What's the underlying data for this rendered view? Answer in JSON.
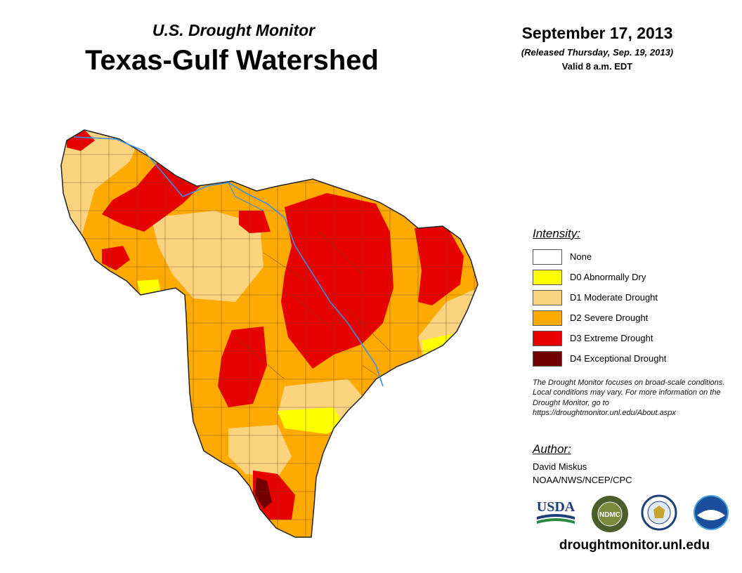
{
  "header": {
    "subtitle": "U.S. Drought Monitor",
    "title": "Texas-Gulf Watershed",
    "date": "September 17, 2013",
    "released": "(Released Thursday, Sep. 19, 2013)",
    "valid": "Valid 8 a.m. EDT"
  },
  "legend": {
    "heading": "Intensity:",
    "items": [
      {
        "label": "None",
        "color": "#ffffff"
      },
      {
        "label": "D0 Abnormally Dry",
        "color": "#ffff00"
      },
      {
        "label": "D1 Moderate Drought",
        "color": "#fcd37f"
      },
      {
        "label": "D2 Severe Drought",
        "color": "#ffaa00"
      },
      {
        "label": "D3 Extreme Drought",
        "color": "#e60000"
      },
      {
        "label": "D4 Exceptional Drought",
        "color": "#730000"
      }
    ]
  },
  "note": "The Drought Monitor focuses on broad-scale conditions. Local conditions may vary. For more information on the Drought Monitor, go to https://droughtmonitor.unl.edu/About.aspx",
  "author": {
    "heading": "Author:",
    "name": "David Miskus",
    "org": "NOAA/NWS/NCEP/CPC"
  },
  "logos": {
    "usda": "USDA",
    "ndmc": "NDMC",
    "noaa": "NOAA"
  },
  "url": "droughtmonitor.unl.edu",
  "map_colors": {
    "river": "#3d8fe0",
    "county_lines": "#6b4a2a",
    "outline": "#222222"
  }
}
